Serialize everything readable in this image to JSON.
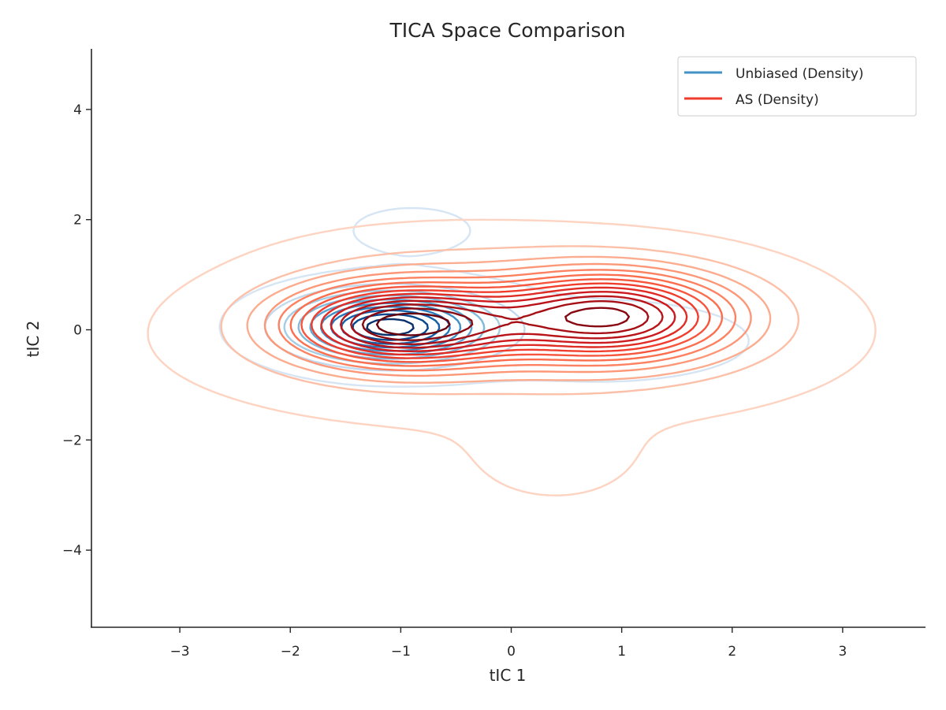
{
  "chart_data": {
    "type": "contour",
    "title": "TICA Space Comparison",
    "xlabel": "tIC 1",
    "ylabel": "tIC 2",
    "xlim": [
      -3.8,
      3.75
    ],
    "ylim": [
      -5.4,
      5.1
    ],
    "xticks": [
      -3,
      -2,
      -1,
      0,
      1,
      2,
      3
    ],
    "yticks": [
      -4,
      -2,
      0,
      2,
      4
    ],
    "xtick_labels": [
      "−3",
      "−2",
      "−1",
      "0",
      "1",
      "2",
      "3"
    ],
    "ytick_labels": [
      "−4",
      "−2",
      "0",
      "2",
      "4"
    ],
    "grid": false,
    "legend_position": "top-right",
    "series": [
      {
        "name": "Unbiased (Density)",
        "legend_color": "#4292c6",
        "colormap": "Blues",
        "levels": 10,
        "components": [
          {
            "mx": -1.1,
            "my": 0.05,
            "sx": 0.55,
            "sy": 0.38,
            "w": 1.0
          },
          {
            "mx": -0.9,
            "my": 1.8,
            "sx": 0.45,
            "sy": 0.35,
            "w": 0.04
          },
          {
            "mx": 0.8,
            "my": -0.2,
            "sx": 1.0,
            "sy": 0.55,
            "w": 0.05
          }
        ]
      },
      {
        "name": "AS (Density)",
        "legend_color": "#ef3b2c",
        "colormap": "Reds",
        "levels": 14,
        "components": [
          {
            "mx": -1.0,
            "my": 0.1,
            "sx": 0.7,
            "sy": 0.5,
            "w": 1.0
          },
          {
            "mx": 0.9,
            "my": 0.25,
            "sx": 0.75,
            "sy": 0.55,
            "w": 0.9
          },
          {
            "mx": 0.0,
            "my": -0.2,
            "sx": 1.7,
            "sy": 0.9,
            "w": 0.12
          },
          {
            "mx": 0.4,
            "my": -2.3,
            "sx": 0.5,
            "sy": 0.55,
            "w": 0.05
          },
          {
            "mx": -0.5,
            "my": 1.3,
            "sx": 1.0,
            "sy": 0.45,
            "w": 0.05
          }
        ]
      }
    ]
  }
}
